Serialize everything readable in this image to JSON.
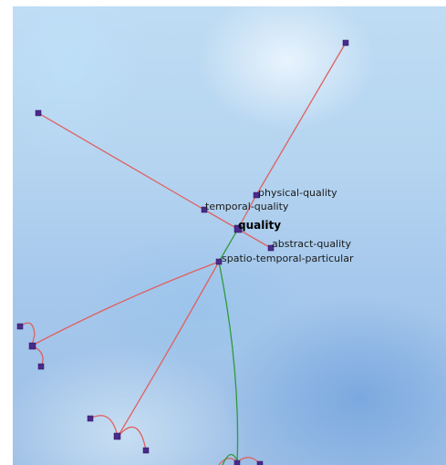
{
  "graph": {
    "focus_node": "quality",
    "labels": {
      "physical_quality": "physical-quality",
      "temporal_quality": "temporal-quality",
      "quality": "quality",
      "abstract_quality": "abstract-quality",
      "spatio_temporal_particular": "spatio-temporal-particular"
    },
    "colors": {
      "isa_edge": "#e06060",
      "parent_edge": "#2e9a3a",
      "node": "#4a2a8a"
    }
  }
}
